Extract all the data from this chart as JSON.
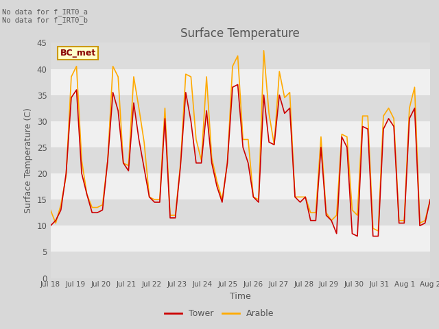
{
  "title": "Surface Temperature",
  "xlabel": "Time",
  "ylabel": "Surface Temperature (C)",
  "ylim": [
    0,
    45
  ],
  "yticks": [
    0,
    5,
    10,
    15,
    20,
    25,
    30,
    35,
    40,
    45
  ],
  "fig_bg_color": "#d8d8d8",
  "plot_bg_color": "#f0f0f0",
  "band_color_light": "#f0f0f0",
  "band_color_dark": "#dcdcdc",
  "tower_color": "#cc0000",
  "arable_color": "#ffaa00",
  "text_color": "#555555",
  "annotation_text": "No data for f_IRT0_a\nNo data for f_IRT0_b",
  "legend_box_label": "BC_met",
  "legend_box_color": "#ffffcc",
  "legend_box_border": "#cc9900",
  "x_tick_labels": [
    "Jul 18",
    "Jul 19",
    "Jul 20",
    "Jul 21",
    "Jul 22",
    "Jul 23",
    "Jul 24",
    "Jul 25",
    "Jul 26",
    "Jul 27",
    "Jul 28",
    "Jul 29",
    "Jul 30",
    "Jul 31",
    "Aug 1",
    "Aug 2"
  ],
  "tower_data": [
    10.0,
    11.0,
    13.0,
    20.0,
    34.5,
    36.0,
    20.0,
    16.0,
    12.5,
    12.5,
    13.0,
    22.5,
    35.5,
    32.0,
    22.0,
    20.5,
    33.5,
    26.5,
    21.0,
    15.5,
    14.5,
    14.5,
    30.5,
    11.5,
    11.5,
    21.5,
    35.5,
    30.0,
    22.0,
    22.0,
    32.0,
    22.0,
    17.5,
    14.5,
    22.0,
    36.5,
    37.0,
    25.0,
    22.0,
    15.5,
    14.5,
    35.0,
    26.0,
    25.5,
    35.0,
    31.5,
    32.5,
    15.5,
    14.5,
    15.5,
    11.0,
    11.0,
    25.0,
    12.0,
    11.0,
    8.5,
    27.0,
    25.0,
    8.5,
    8.0,
    29.0,
    28.5,
    8.0,
    8.0,
    28.5,
    30.5,
    29.0,
    10.5,
    10.5,
    30.5,
    32.5,
    10.0,
    10.5,
    15.0
  ],
  "arable_data": [
    13.0,
    10.5,
    14.0,
    19.5,
    38.5,
    40.5,
    22.5,
    16.0,
    13.5,
    13.5,
    14.0,
    22.5,
    40.5,
    38.5,
    22.0,
    21.5,
    38.5,
    32.5,
    26.0,
    15.5,
    15.0,
    15.0,
    32.5,
    12.0,
    12.0,
    22.0,
    39.0,
    38.5,
    26.5,
    22.5,
    38.5,
    23.0,
    18.5,
    15.0,
    22.0,
    40.5,
    42.5,
    26.5,
    26.5,
    15.5,
    15.0,
    43.5,
    31.5,
    25.5,
    39.5,
    34.5,
    35.5,
    15.5,
    15.5,
    15.5,
    12.5,
    12.5,
    27.0,
    12.5,
    11.0,
    12.0,
    27.5,
    27.0,
    13.0,
    12.0,
    31.0,
    31.0,
    9.5,
    9.0,
    31.0,
    32.5,
    30.5,
    11.0,
    11.0,
    32.5,
    36.5,
    10.5,
    11.0,
    15.0
  ]
}
